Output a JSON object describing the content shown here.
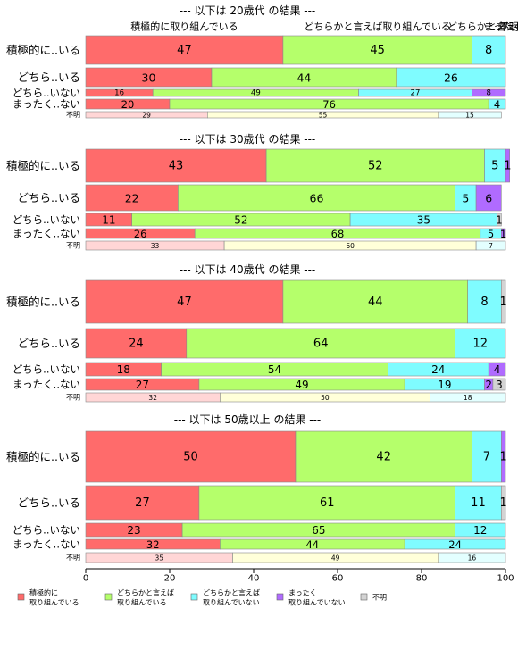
{
  "chart_data": {
    "type": "bar",
    "orientation": "horizontal",
    "stacked": true,
    "xlim": [
      0,
      100
    ],
    "x_ticks": [
      "0",
      "20",
      "40",
      "60",
      "80",
      "100"
    ],
    "categories": [
      "積極的に..いる",
      "どちら..いる",
      "どちら..いない",
      "まったく..ない",
      "不明"
    ],
    "series_labels": [
      "積極的に取り組んでいる",
      "どちらかと言えば取り組んでいる",
      "どちらかと言えば取り組んでいない",
      "まったく取り組んでいない",
      "不明"
    ],
    "top_labels": [
      {
        "text": "積極的に取り組んでいる",
        "x": 23.5
      },
      {
        "text": "どちらかと言えば取り組んでいる",
        "x": 69.5
      },
      {
        "text": "どちらかと言えば",
        "x": 95.5
      },
      {
        "text": "まったく",
        "x": 99.5
      },
      {
        "text": "不明",
        "x": 100.8
      }
    ],
    "panels": [
      {
        "title": "--- 以下は 20歳代 の結果 ---",
        "rows": [
          {
            "label": "積極的に..いる",
            "values": [
              47,
              45,
              8,
              0,
              0
            ]
          },
          {
            "label": "どちら..いる",
            "values": [
              30,
              44,
              26,
              0,
              0
            ]
          },
          {
            "label": "どちら..いない",
            "values": [
              16,
              49,
              27,
              8,
              0
            ]
          },
          {
            "label": "まったく..ない",
            "values": [
              20,
              76,
              4,
              0,
              0
            ]
          },
          {
            "label": "不明",
            "values": [
              29,
              55,
              15,
              0,
              0
            ]
          }
        ]
      },
      {
        "title": "--- 以下は 30歳代 の結果 ---",
        "rows": [
          {
            "label": "積極的に..いる",
            "values": [
              43,
              52,
              5,
              1,
              0
            ]
          },
          {
            "label": "どちら..いる",
            "values": [
              22,
              66,
              5,
              6,
              0
            ]
          },
          {
            "label": "どちら..いない",
            "values": [
              11,
              52,
              35,
              0,
              1
            ]
          },
          {
            "label": "まったく..ない",
            "values": [
              26,
              68,
              5,
              1,
              0
            ]
          },
          {
            "label": "不明",
            "values": [
              33,
              60,
              7,
              0,
              0
            ]
          }
        ]
      },
      {
        "title": "--- 以下は 40歳代 の結果 ---",
        "rows": [
          {
            "label": "積極的に..いる",
            "values": [
              47,
              44,
              8,
              0,
              1
            ]
          },
          {
            "label": "どちら..いる",
            "values": [
              24,
              64,
              12,
              0,
              0
            ]
          },
          {
            "label": "どちら..いない",
            "values": [
              18,
              54,
              24,
              4,
              0
            ]
          },
          {
            "label": "まったく..ない",
            "values": [
              27,
              49,
              19,
              2,
              3
            ]
          },
          {
            "label": "不明",
            "values": [
              32,
              50,
              18,
              0,
              0
            ]
          }
        ]
      },
      {
        "title": "--- 以下は 50歳以上 の結果 ---",
        "rows": [
          {
            "label": "積極的に..いる",
            "values": [
              50,
              42,
              7,
              1,
              0
            ]
          },
          {
            "label": "どちら..いる",
            "values": [
              27,
              61,
              11,
              0,
              1
            ]
          },
          {
            "label": "どちら..いない",
            "values": [
              23,
              65,
              12,
              0,
              0
            ]
          },
          {
            "label": "まったく..ない",
            "values": [
              32,
              44,
              24,
              0,
              0
            ]
          },
          {
            "label": "不明",
            "values": [
              35,
              49,
              16,
              0,
              0
            ]
          }
        ]
      }
    ],
    "legend": {
      "placement": "bottom",
      "items": [
        {
          "line1": "積極的に",
          "line2": "取り組んでいる",
          "color": "#ff6b6b"
        },
        {
          "line1": "どちらかと言えば",
          "line2": "取り組んでいる",
          "color": "#b5ff6b"
        },
        {
          "line1": "どちらかと言えば",
          "line2": "取り組んでいない",
          "color": "#7ffcff"
        },
        {
          "line1": "まったく",
          "line2": "取り組んでいない",
          "color": "#b06bff"
        },
        {
          "line1": "不明",
          "line2": "",
          "color": "#d3d3d3"
        }
      ]
    },
    "colors": [
      "#ff6b6b",
      "#b5ff6b",
      "#7ffcff",
      "#b06bff",
      "#d3d3d3"
    ],
    "unknown_row_colors": [
      "#ffd6d6",
      "#ffffd9",
      "#e3ffff",
      "#ecdcff",
      "#f0f0f0"
    ],
    "title_color": "#0000cc"
  }
}
